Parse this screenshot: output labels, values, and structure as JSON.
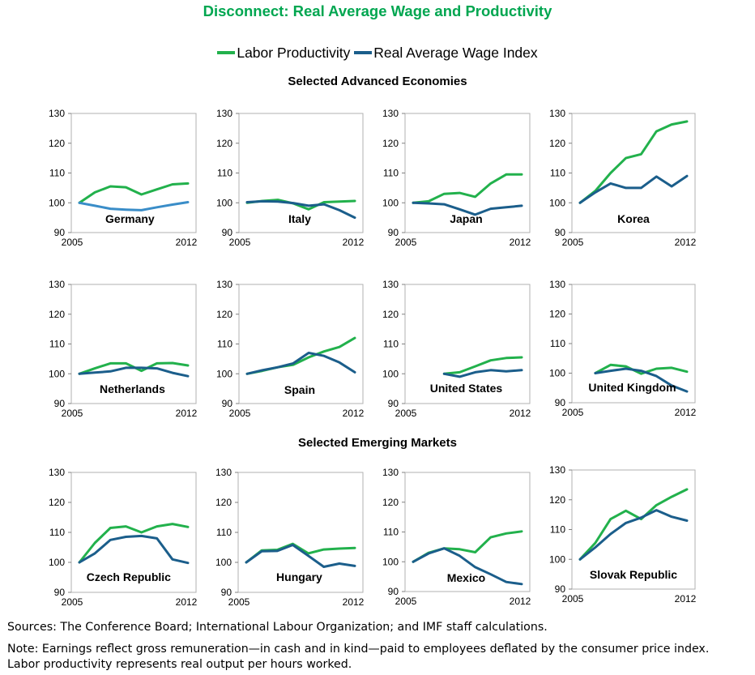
{
  "title": "Disconnect: Real Average Wage and Productivity",
  "legend": [
    {
      "label": "Labor Productivity",
      "color": "#22b14c"
    },
    {
      "label": "Real Average Wage Index",
      "color": "#1b5e8b"
    }
  ],
  "sections": {
    "advanced": "Selected Advanced Economies",
    "emerging": "Selected Emerging Markets"
  },
  "footer": {
    "sources": "Sources: The Conference Board; International Labour Organization; and IMF staff calculations.",
    "note1": "Note: Earnings reflect gross remuneration—in cash and in kind—paid to employees deflated by the consumer price index.",
    "note2": "Labor productivity represents real output per hours worked."
  },
  "chart_data": [
    {
      "type": "line",
      "title": "Germany",
      "ylim": [
        90,
        130
      ],
      "yticks": [
        90,
        100,
        110,
        120,
        130
      ],
      "xlabels": [
        "2005",
        "2012"
      ],
      "x": [
        2005,
        2006,
        2007,
        2008,
        2009,
        2010,
        2011,
        2012
      ],
      "series": [
        {
          "name": "Labor Productivity",
          "color": "#22b14c",
          "values": [
            100,
            103.5,
            105.5,
            105.2,
            102.8,
            104.5,
            106.2,
            106.5
          ]
        },
        {
          "name": "Real Average Wage Index",
          "color": "#3a8dc8",
          "values": [
            100,
            99,
            98,
            97.7,
            97.5,
            98.5,
            99.4,
            100.2
          ]
        }
      ]
    },
    {
      "type": "line",
      "title": "Italy",
      "ylim": [
        90,
        130
      ],
      "yticks": [
        90,
        100,
        110,
        120,
        130
      ],
      "xlabels": [
        "2005",
        "2012"
      ],
      "x": [
        2005,
        2006,
        2007,
        2008,
        2009,
        2010,
        2011,
        2012
      ],
      "series": [
        {
          "name": "Labor Productivity",
          "color": "#22b14c",
          "values": [
            100,
            100.6,
            101,
            99.8,
            97.8,
            100.2,
            100.4,
            100.6
          ]
        },
        {
          "name": "Real Average Wage Index",
          "color": "#1b5e8b",
          "values": [
            100.2,
            100.5,
            100.4,
            99.9,
            99,
            99.5,
            97.5,
            95
          ]
        }
      ]
    },
    {
      "type": "line",
      "title": "Japan",
      "ylim": [
        90,
        130
      ],
      "yticks": [
        90,
        100,
        110,
        120,
        130
      ],
      "xlabels": [
        "2005",
        "2012"
      ],
      "x": [
        2005,
        2006,
        2007,
        2008,
        2009,
        2010,
        2011,
        2012
      ],
      "series": [
        {
          "name": "Labor Productivity",
          "color": "#22b14c",
          "values": [
            100,
            100.5,
            103,
            103.3,
            102,
            106.5,
            109.5,
            109.5
          ]
        },
        {
          "name": "Real Average Wage Index",
          "color": "#1b5e8b",
          "values": [
            100,
            99.8,
            99.5,
            97.8,
            96,
            98,
            98.5,
            99
          ]
        }
      ]
    },
    {
      "type": "line",
      "title": "Korea",
      "ylim": [
        90,
        130
      ],
      "yticks": [
        90,
        100,
        110,
        120,
        130
      ],
      "xlabels": [
        "2005",
        "2012"
      ],
      "x": [
        2005,
        2006,
        2007,
        2008,
        2009,
        2010,
        2011,
        2012
      ],
      "series": [
        {
          "name": "Labor Productivity",
          "color": "#22b14c",
          "values": [
            100,
            104,
            110,
            115,
            116.3,
            124,
            126.3,
            127.3
          ]
        },
        {
          "name": "Real Average Wage Index",
          "color": "#1b5e8b",
          "values": [
            100,
            103.5,
            106.5,
            105,
            105,
            108.8,
            105.5,
            109
          ]
        }
      ]
    },
    {
      "type": "line",
      "title": "Netherlands",
      "ylim": [
        90,
        130
      ],
      "yticks": [
        90,
        100,
        110,
        120,
        130
      ],
      "xlabels": [
        "2005",
        "2012"
      ],
      "x": [
        2005,
        2006,
        2007,
        2008,
        2009,
        2010,
        2011,
        2012
      ],
      "series": [
        {
          "name": "Labor Productivity",
          "color": "#22b14c",
          "values": [
            100,
            101.8,
            103.5,
            103.5,
            101,
            103.5,
            103.6,
            102.8
          ]
        },
        {
          "name": "Real Average Wage Index",
          "color": "#1b5e8b",
          "values": [
            100,
            100.4,
            100.8,
            102,
            102,
            101.8,
            100.3,
            99.2
          ]
        }
      ]
    },
    {
      "type": "line",
      "title": "Spain",
      "ylim": [
        90,
        130
      ],
      "yticks": [
        90,
        100,
        110,
        120,
        130
      ],
      "xlabels": [
        "2005",
        "2012"
      ],
      "x": [
        2005,
        2006,
        2007,
        2008,
        2009,
        2010,
        2011,
        2012
      ],
      "series": [
        {
          "name": "Labor Productivity",
          "color": "#22b14c",
          "values": [
            100,
            101,
            102.2,
            103,
            105.5,
            107.5,
            109,
            112
          ]
        },
        {
          "name": "Real Average Wage Index",
          "color": "#1b5e8b",
          "values": [
            100,
            101.2,
            102.2,
            103.5,
            107,
            106,
            103.8,
            100.5
          ]
        }
      ]
    },
    {
      "type": "line",
      "title": "United States",
      "ylim": [
        90,
        130
      ],
      "yticks": [
        90,
        100,
        110,
        120,
        130
      ],
      "xlabels": [
        "2005",
        "2012"
      ],
      "x": [
        2005,
        2006,
        2007,
        2008,
        2009,
        2010,
        2011,
        2012
      ],
      "series": [
        {
          "name": "Labor Productivity",
          "color": "#22b14c",
          "values": [
            null,
            null,
            100,
            100.5,
            102.5,
            104.5,
            105.3,
            105.5
          ]
        },
        {
          "name": "Real Average Wage Index",
          "color": "#1b5e8b",
          "values": [
            null,
            null,
            100,
            99,
            100.5,
            101.2,
            100.8,
            101.2
          ]
        }
      ]
    },
    {
      "type": "line",
      "title": "United Kingdom",
      "ylim": [
        90,
        130
      ],
      "yticks": [
        90,
        100,
        110,
        120,
        130
      ],
      "xlabels": [
        "2005",
        "2012"
      ],
      "x": [
        2005,
        2006,
        2007,
        2008,
        2009,
        2010,
        2011,
        2012
      ],
      "series": [
        {
          "name": "Labor Productivity",
          "color": "#22b14c",
          "values": [
            null,
            100,
            102.8,
            102.3,
            99.8,
            101.5,
            101.8,
            100.5
          ]
        },
        {
          "name": "Real Average Wage Index",
          "color": "#1b5e8b",
          "values": [
            null,
            100,
            100.8,
            101.5,
            100.8,
            99,
            95.8,
            93.8
          ]
        }
      ]
    },
    {
      "type": "line",
      "title": "Czech Republic",
      "ylim": [
        90,
        130
      ],
      "yticks": [
        90,
        100,
        110,
        120,
        130
      ],
      "xlabels": [
        "2005",
        "2012"
      ],
      "x": [
        2005,
        2006,
        2007,
        2008,
        2009,
        2010,
        2011,
        2012
      ],
      "series": [
        {
          "name": "Labor Productivity",
          "color": "#22b14c",
          "values": [
            100,
            106.5,
            111.5,
            112,
            110,
            112,
            112.8,
            111.8
          ]
        },
        {
          "name": "Real Average Wage Index",
          "color": "#1b5e8b",
          "values": [
            100,
            103,
            107.5,
            108.5,
            108.8,
            108,
            101,
            99.8
          ]
        }
      ]
    },
    {
      "type": "line",
      "title": "Hungary",
      "ylim": [
        90,
        130
      ],
      "yticks": [
        90,
        100,
        110,
        120,
        130
      ],
      "xlabels": [
        "2005",
        "2012"
      ],
      "x": [
        2005,
        2006,
        2007,
        2008,
        2009,
        2010,
        2011,
        2012
      ],
      "series": [
        {
          "name": "Labor Productivity",
          "color": "#22b14c",
          "values": [
            100,
            104,
            104.2,
            106.2,
            103,
            104.3,
            104.6,
            104.8
          ]
        },
        {
          "name": "Real Average Wage Index",
          "color": "#1b5e8b",
          "values": [
            100,
            103.7,
            103.8,
            105.8,
            102.2,
            98.5,
            99.6,
            98.8
          ]
        }
      ]
    },
    {
      "type": "line",
      "title": "Mexico",
      "ylim": [
        90,
        130
      ],
      "yticks": [
        90,
        100,
        110,
        120,
        130
      ],
      "xlabels": [
        "2005",
        "2012"
      ],
      "x": [
        2005,
        2006,
        2007,
        2008,
        2009,
        2010,
        2011,
        2012
      ],
      "series": [
        {
          "name": "Labor Productivity",
          "color": "#22b14c",
          "values": [
            100,
            103,
            104.5,
            104.2,
            103.2,
            108.2,
            109.5,
            110.2
          ]
        },
        {
          "name": "Real Average Wage Index",
          "color": "#1b5e8b",
          "values": [
            100,
            102.8,
            104.5,
            102,
            98.2,
            95.8,
            93.2,
            92.5
          ]
        }
      ]
    },
    {
      "type": "line",
      "title": "Slovak Republic",
      "ylim": [
        90,
        130
      ],
      "yticks": [
        90,
        100,
        110,
        120,
        130
      ],
      "xlabels": [
        "2005",
        "2012"
      ],
      "x": [
        2005,
        2006,
        2007,
        2008,
        2009,
        2010,
        2011,
        2012
      ],
      "series": [
        {
          "name": "Labor Productivity",
          "color": "#22b14c",
          "values": [
            100,
            105.5,
            113.5,
            116.3,
            113.5,
            118.2,
            121,
            123.5
          ]
        },
        {
          "name": "Real Average Wage Index",
          "color": "#1b5e8b",
          "values": [
            100,
            104,
            108.5,
            112.2,
            114,
            116.5,
            114.3,
            113
          ]
        }
      ]
    }
  ]
}
